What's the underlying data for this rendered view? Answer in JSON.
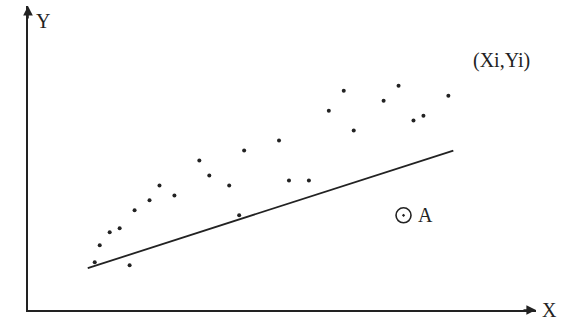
{
  "chart_data": {
    "type": "scatter",
    "x_label": "X",
    "y_label": "Y",
    "xlim": [
      0,
      10.2
    ],
    "ylim": [
      0,
      6.1
    ],
    "xticks": [],
    "yticks": [],
    "tick_labels": false,
    "grid": false,
    "series": [
      {
        "type": "scatter",
        "marker": "dot",
        "color": "#222222",
        "x": [
          1.34,
          1.44,
          1.64,
          1.84,
          2.04,
          2.14,
          2.44,
          2.64,
          2.94,
          3.44,
          3.64,
          4.04,
          4.24,
          4.34,
          5.04,
          5.24,
          5.64,
          6.04,
          6.34,
          6.54,
          7.14,
          7.44,
          7.74,
          7.94,
          8.44
        ],
        "values": [
          0.96,
          1.3,
          1.56,
          1.64,
          0.9,
          2.0,
          2.2,
          2.5,
          2.3,
          3.0,
          2.7,
          2.5,
          1.9,
          3.2,
          3.4,
          2.6,
          2.6,
          4.0,
          4.4,
          3.6,
          4.2,
          4.5,
          3.8,
          3.9,
          4.3
        ]
      },
      {
        "type": "line",
        "line_style": "solid",
        "color": "#222222",
        "x": [
          1.2,
          8.54
        ],
        "values": [
          0.84,
          3.2
        ]
      },
      {
        "type": "scatter",
        "marker": "circled",
        "color": "#222222",
        "x": [
          7.54
        ],
        "values": [
          1.9
        ]
      }
    ],
    "annotations": [
      {
        "text": "(Xi,Yi)",
        "x": 8.9,
        "y": 5.0
      },
      {
        "text": "A",
        "x": 7.8,
        "y": 1.9
      }
    ]
  }
}
